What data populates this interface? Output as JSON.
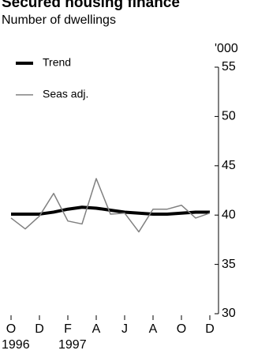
{
  "chart_data": {
    "type": "line",
    "title": "Secured housing finance",
    "subtitle": "Number of dwellings",
    "y_unit": "'000",
    "categories": [
      "O",
      null,
      "D",
      null,
      "F",
      null,
      "A",
      null,
      "J",
      null,
      "A",
      null,
      "O",
      null,
      "D"
    ],
    "year_labels": [
      "1996",
      null,
      null,
      null,
      "1997",
      null,
      null,
      null,
      null,
      null,
      null,
      null,
      null,
      null,
      null
    ],
    "series": [
      {
        "name": "Trend",
        "color": "#000000",
        "width": 4,
        "values": [
          40.1,
          40.1,
          40.1,
          40.3,
          40.6,
          40.8,
          40.7,
          40.5,
          40.3,
          40.2,
          40.1,
          40.1,
          40.2,
          40.3,
          40.3
        ]
      },
      {
        "name": "Seas adj.",
        "color": "#808080",
        "width": 1.5,
        "values": [
          39.7,
          38.6,
          39.9,
          42.2,
          39.4,
          39.1,
          43.7,
          40.1,
          40.2,
          38.3,
          40.6,
          40.6,
          41.0,
          39.7,
          40.2
        ]
      }
    ],
    "ylim": [
      30,
      55
    ],
    "yticks": [
      30,
      35,
      40,
      45,
      50,
      55
    ],
    "legend": "upper-left"
  }
}
